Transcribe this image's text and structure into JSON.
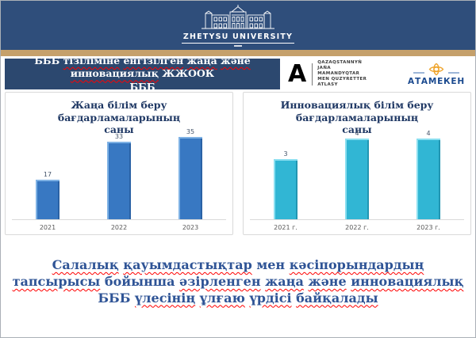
{
  "header": {
    "university_name": "ZHETYSU UNIVERSITY"
  },
  "slide_title": {
    "lines": [
      {
        "words": [
          {
            "t": "БББ",
            "m": false
          },
          {
            "t": "тізіліміне",
            "m": true
          },
          {
            "t": "енгізілген",
            "m": true
          },
          {
            "t": "жаңа",
            "m": true
          },
          {
            "t": "және",
            "m": true
          },
          {
            "t": "инновациялық",
            "m": true
          },
          {
            "t": "ЖЖООК",
            "m": false
          }
        ]
      },
      {
        "words": [
          {
            "t": "БББ",
            "m": false
          }
        ]
      }
    ]
  },
  "partners": {
    "atlas": {
      "lines": [
        "QAZAQSTANNYŃ",
        "JAŃA",
        "MAMANDYQTAR",
        "MEN QUZYRETTER",
        "ATLASY"
      ]
    },
    "atameken": {
      "name": "АТАМЕКЕН"
    }
  },
  "chart_data": [
    {
      "type": "bar",
      "title": "Жаңа білім беру бағдарламаларының саны",
      "categories": [
        "2021",
        "2022",
        "2023"
      ],
      "values": [
        17,
        33,
        35
      ],
      "ylim": [
        0,
        38
      ],
      "grid": false,
      "legend": "none",
      "data_labels": true,
      "bar_color": "#3878C2",
      "bar_color_light": "#7FB2E5",
      "bar_color_dark": "#2A62A5"
    },
    {
      "type": "bar",
      "title": "Инновациялық білім беру бағдарламаларының саны",
      "categories": [
        "2021 г.",
        "2022 г.",
        "2023 г."
      ],
      "values": [
        3,
        4,
        4
      ],
      "ylim": [
        0,
        4.5
      ],
      "grid": false,
      "legend": "none",
      "data_labels": true,
      "bar_color": "#31B6D4",
      "bar_color_light": "#8ADFF0",
      "bar_color_dark": "#2296B2"
    }
  ],
  "conclusion": {
    "lines": [
      {
        "words": [
          {
            "t": "Салалық",
            "m": true
          },
          {
            "t": "қауымдастықтар",
            "m": true
          },
          {
            "t": "мен",
            "m": false
          },
          {
            "t": "кәсіпорындардың",
            "m": true
          }
        ]
      },
      {
        "words": [
          {
            "t": "тапсырысы",
            "m": true
          },
          {
            "t": "бойынша",
            "m": false
          },
          {
            "t": "әзірленген",
            "m": true
          },
          {
            "t": "жаңа",
            "m": true
          },
          {
            "t": "және",
            "m": true
          },
          {
            "t": "инновациялық",
            "m": true
          }
        ]
      },
      {
        "words": [
          {
            "t": "БББ",
            "m": false
          },
          {
            "t": "үлесінің",
            "m": true
          },
          {
            "t": "ұлғаю",
            "m": true
          },
          {
            "t": "үрдісі",
            "m": true
          },
          {
            "t": "байқалады",
            "m": true
          }
        ]
      }
    ]
  },
  "colors": {
    "header_bg": "#2F4E7B",
    "accent_stripe": "#C5A06B",
    "title_bg": "#2C486F",
    "chart_title_text": "#1F3864",
    "conclusion_text": "#2F5496",
    "spellcheck_underline": "#FF0000",
    "atameken_blue": "#1B4A8F",
    "atameken_gold": "#EFA42C",
    "panel_border": "#D9D9D9"
  }
}
